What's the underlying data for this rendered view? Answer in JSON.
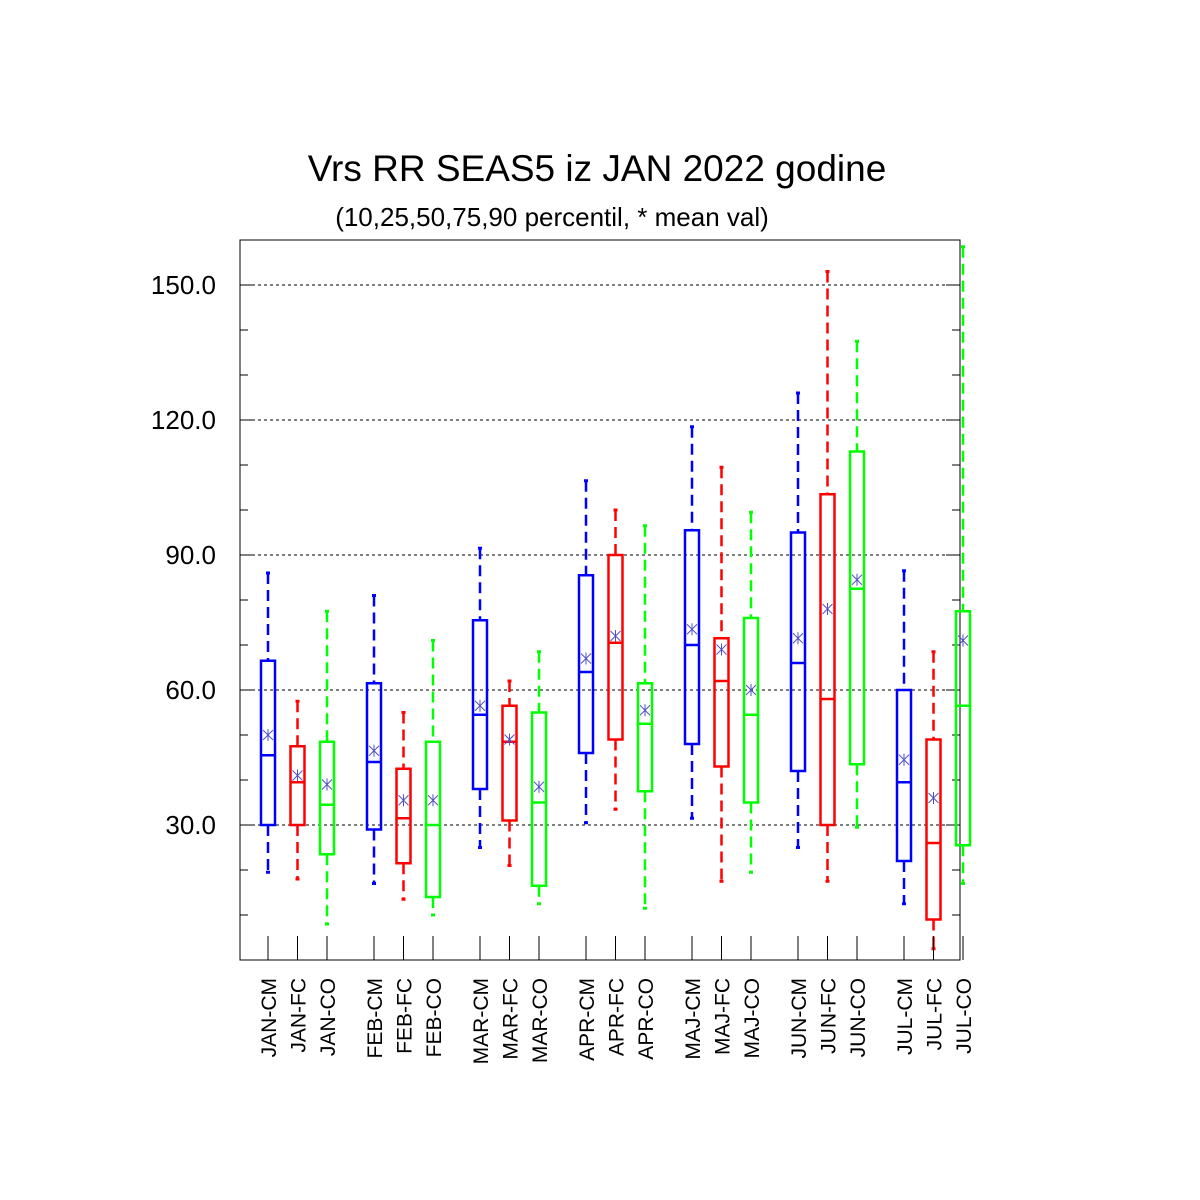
{
  "chart_data": {
    "type": "boxplot",
    "title": "Vrs RR SEAS5 iz JAN 2022 godine",
    "subtitle": "(10,25,50,75,90 percentil, * mean val)",
    "ylim": [
      0,
      160
    ],
    "yticks": [
      30,
      60,
      90,
      120,
      150
    ],
    "ytick_labels": [
      "30.0",
      "60.0",
      "90.0",
      "120.0",
      "150.0"
    ],
    "grid": "horizontal dotted at major ticks",
    "colors": {
      "CM": "#0000ff",
      "FC": "#ff0000",
      "CO": "#00ff00",
      "mean_marker": "#5050c8"
    },
    "boxes": [
      {
        "label": "JAN-CM",
        "group": "CM",
        "p10": 19.5,
        "p25": 30.0,
        "p50": 45.5,
        "p75": 66.5,
        "p90": 86.0,
        "mean": 50.0
      },
      {
        "label": "JAN-FC",
        "group": "FC",
        "p10": 18.0,
        "p25": 30.0,
        "p50": 39.5,
        "p75": 47.5,
        "p90": 57.5,
        "mean": 41.0
      },
      {
        "label": "JAN-CO",
        "group": "CO",
        "p10": 8.0,
        "p25": 23.5,
        "p50": 34.5,
        "p75": 48.5,
        "p90": 77.5,
        "mean": 39.0
      },
      {
        "label": "FEB-CM",
        "group": "CM",
        "p10": 17.0,
        "p25": 29.0,
        "p50": 44.0,
        "p75": 61.5,
        "p90": 81.0,
        "mean": 46.5
      },
      {
        "label": "FEB-FC",
        "group": "FC",
        "p10": 13.5,
        "p25": 21.5,
        "p50": 31.5,
        "p75": 42.5,
        "p90": 55.0,
        "mean": 35.5
      },
      {
        "label": "FEB-CO",
        "group": "CO",
        "p10": 10.0,
        "p25": 14.0,
        "p50": 30.0,
        "p75": 48.5,
        "p90": 71.0,
        "mean": 35.5
      },
      {
        "label": "MAR-CM",
        "group": "CM",
        "p10": 25.0,
        "p25": 38.0,
        "p50": 54.5,
        "p75": 75.5,
        "p90": 91.5,
        "mean": 56.5
      },
      {
        "label": "MAR-FC",
        "group": "FC",
        "p10": 21.0,
        "p25": 31.0,
        "p50": 48.5,
        "p75": 56.5,
        "p90": 62.0,
        "mean": 49.0
      },
      {
        "label": "MAR-CO",
        "group": "CO",
        "p10": 12.5,
        "p25": 16.5,
        "p50": 35.0,
        "p75": 55.0,
        "p90": 68.5,
        "mean": 38.5
      },
      {
        "label": "APR-CM",
        "group": "CM",
        "p10": 30.5,
        "p25": 46.0,
        "p50": 64.0,
        "p75": 85.5,
        "p90": 106.5,
        "mean": 67.0
      },
      {
        "label": "APR-FC",
        "group": "FC",
        "p10": 33.5,
        "p25": 49.0,
        "p50": 70.5,
        "p75": 90.0,
        "p90": 100.0,
        "mean": 72.0
      },
      {
        "label": "APR-CO",
        "group": "CO",
        "p10": 11.5,
        "p25": 37.5,
        "p50": 52.5,
        "p75": 61.5,
        "p90": 96.5,
        "mean": 55.5
      },
      {
        "label": "MAJ-CM",
        "group": "CM",
        "p10": 31.5,
        "p25": 48.0,
        "p50": 70.0,
        "p75": 95.5,
        "p90": 118.5,
        "mean": 73.5
      },
      {
        "label": "MAJ-FC",
        "group": "FC",
        "p10": 17.5,
        "p25": 43.0,
        "p50": 62.0,
        "p75": 71.5,
        "p90": 109.5,
        "mean": 69.0
      },
      {
        "label": "MAJ-CO",
        "group": "CO",
        "p10": 19.5,
        "p25": 35.0,
        "p50": 54.5,
        "p75": 76.0,
        "p90": 99.5,
        "mean": 60.0
      },
      {
        "label": "JUN-CM",
        "group": "CM",
        "p10": 25.0,
        "p25": 42.0,
        "p50": 66.0,
        "p75": 95.0,
        "p90": 126.0,
        "mean": 71.5
      },
      {
        "label": "JUN-FC",
        "group": "FC",
        "p10": 17.5,
        "p25": 30.0,
        "p50": 58.0,
        "p75": 103.5,
        "p90": 153.0,
        "mean": 78.0
      },
      {
        "label": "JUN-CO",
        "group": "CO",
        "p10": 29.5,
        "p25": 43.5,
        "p50": 82.5,
        "p75": 113.0,
        "p90": 137.5,
        "mean": 84.5
      },
      {
        "label": "JUL-CM",
        "group": "CM",
        "p10": 12.5,
        "p25": 22.0,
        "p50": 39.5,
        "p75": 60.0,
        "p90": 86.5,
        "mean": 44.5
      },
      {
        "label": "JUL-FC",
        "group": "FC",
        "p10": 2.5,
        "p25": 9.0,
        "p50": 26.0,
        "p75": 49.0,
        "p90": 68.5,
        "mean": 36.0
      },
      {
        "label": "JUL-CO",
        "group": "CO",
        "p10": 17.0,
        "p25": 25.5,
        "p50": 56.5,
        "p75": 77.5,
        "p90": 158.5,
        "mean": 71.0
      }
    ]
  }
}
